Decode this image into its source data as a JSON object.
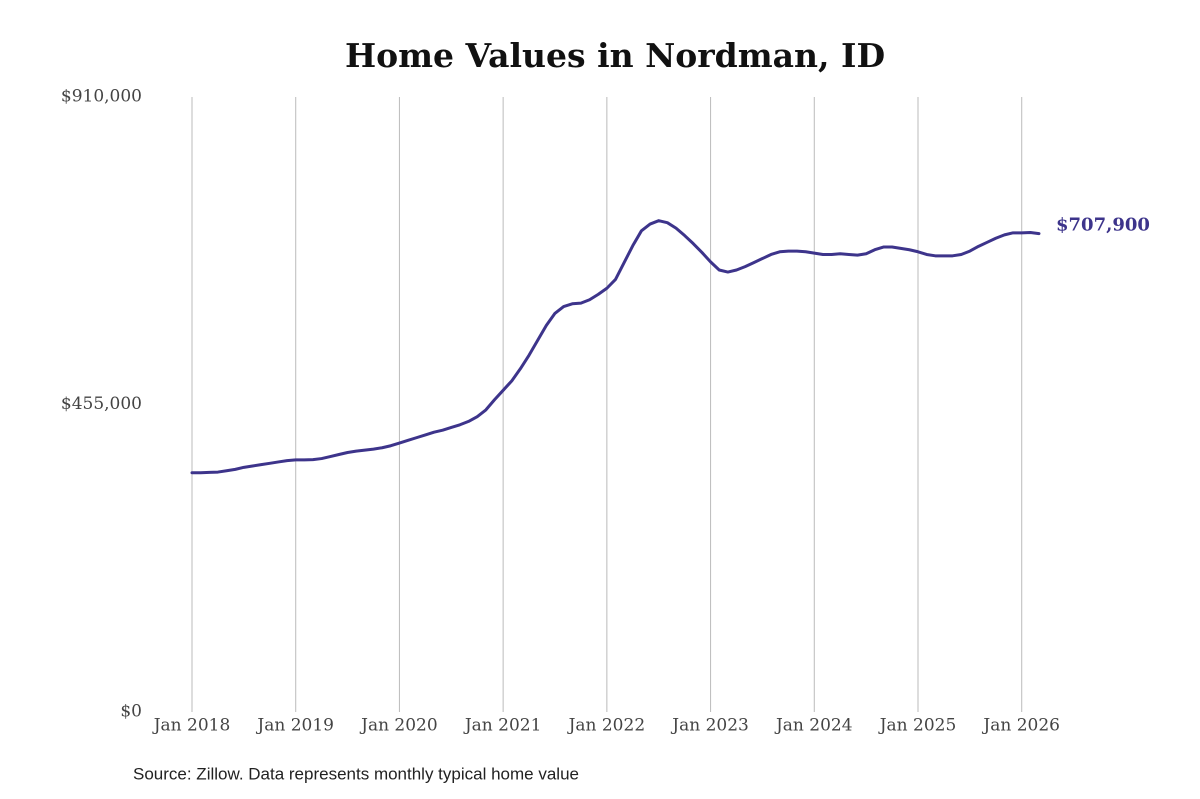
{
  "chart_data": {
    "type": "line",
    "title": "Home Values in Nordman, ID",
    "source": "Source: Zillow. Data represents monthly typical home value",
    "x": [
      "2018-01",
      "2018-02",
      "2018-03",
      "2018-04",
      "2018-05",
      "2018-06",
      "2018-07",
      "2018-08",
      "2018-09",
      "2018-10",
      "2018-11",
      "2018-12",
      "2019-01",
      "2019-02",
      "2019-03",
      "2019-04",
      "2019-05",
      "2019-06",
      "2019-07",
      "2019-08",
      "2019-09",
      "2019-10",
      "2019-11",
      "2019-12",
      "2020-01",
      "2020-02",
      "2020-03",
      "2020-04",
      "2020-05",
      "2020-06",
      "2020-07",
      "2020-08",
      "2020-09",
      "2020-10",
      "2020-11",
      "2020-12",
      "2021-01",
      "2021-02",
      "2021-03",
      "2021-04",
      "2021-05",
      "2021-06",
      "2021-07",
      "2021-08",
      "2021-09",
      "2021-10",
      "2021-11",
      "2021-12",
      "2022-01",
      "2022-02",
      "2022-03",
      "2022-04",
      "2022-05",
      "2022-06",
      "2022-07",
      "2022-08",
      "2022-09",
      "2022-10",
      "2022-11",
      "2022-12",
      "2023-01",
      "2023-02",
      "2023-03",
      "2023-04",
      "2023-05",
      "2023-06",
      "2023-07",
      "2023-08",
      "2023-09",
      "2023-10",
      "2023-11",
      "2023-12",
      "2024-01",
      "2024-02",
      "2024-03",
      "2024-04",
      "2024-05",
      "2024-06",
      "2024-07",
      "2024-08",
      "2024-09",
      "2024-10",
      "2024-11",
      "2024-12",
      "2025-01",
      "2025-02",
      "2025-03",
      "2025-04",
      "2025-05",
      "2025-06",
      "2025-07",
      "2025-08",
      "2025-09",
      "2025-10",
      "2025-11",
      "2025-12",
      "2026-01",
      "2026-02",
      "2026-03"
    ],
    "series": [
      {
        "name": "Typical home value",
        "color": "#3d348b",
        "values": [
          354000,
          354000,
          354500,
          355000,
          357000,
          359000,
          362000,
          364000,
          366000,
          368000,
          370000,
          372000,
          373000,
          373000,
          373500,
          375000,
          378000,
          381000,
          384000,
          386000,
          387500,
          389000,
          391000,
          394000,
          398000,
          402000,
          406000,
          410000,
          414000,
          417000,
          421000,
          425000,
          430000,
          437000,
          447000,
          462000,
          476000,
          490000,
          508000,
          528000,
          550000,
          572000,
          590000,
          600000,
          604000,
          605000,
          610000,
          618000,
          627000,
          640000,
          665000,
          690000,
          712000,
          722000,
          727000,
          724000,
          716000,
          705000,
          693000,
          680000,
          666000,
          654000,
          651000,
          654000,
          659000,
          665000,
          671000,
          677000,
          681000,
          682000,
          682000,
          681000,
          679000,
          677000,
          677000,
          678000,
          677000,
          676000,
          678000,
          684000,
          688000,
          688000,
          686000,
          684000,
          681000,
          677000,
          675000,
          675000,
          675000,
          677000,
          682000,
          689000,
          695000,
          701000,
          706000,
          709000,
          709000,
          709500,
          707900
        ],
        "value_labels": [
          null,
          null,
          null,
          null,
          null,
          null,
          null,
          null,
          null,
          null,
          null,
          null,
          null,
          null,
          null,
          null,
          null,
          null,
          null,
          null,
          null,
          null,
          null,
          null,
          null,
          null,
          null,
          null,
          null,
          null,
          null,
          null,
          null,
          null,
          null,
          null,
          null,
          null,
          null,
          null,
          null,
          null,
          null,
          null,
          null,
          null,
          null,
          null,
          null,
          null,
          null,
          null,
          null,
          null,
          null,
          null,
          null,
          null,
          null,
          null,
          null,
          null,
          null,
          null,
          null,
          null,
          null,
          null,
          null,
          null,
          null,
          null,
          null,
          null,
          null,
          null,
          null,
          null,
          null,
          null,
          null,
          null,
          null,
          null,
          null,
          null,
          null,
          null,
          null,
          null,
          null,
          null,
          null,
          null,
          null,
          null,
          null,
          null,
          "$707,900"
        ]
      }
    ],
    "xlim": [
      "2018-01",
      "2026-03"
    ],
    "xticks": [
      {
        "value": "2018-01",
        "label": "Jan 2018"
      },
      {
        "value": "2019-01",
        "label": "Jan 2019"
      },
      {
        "value": "2020-01",
        "label": "Jan 2020"
      },
      {
        "value": "2021-01",
        "label": "Jan 2021"
      },
      {
        "value": "2022-01",
        "label": "Jan 2022"
      },
      {
        "value": "2023-01",
        "label": "Jan 2023"
      },
      {
        "value": "2024-01",
        "label": "Jan 2024"
      },
      {
        "value": "2025-01",
        "label": "Jan 2025"
      },
      {
        "value": "2026-01",
        "label": "Jan 2026"
      }
    ],
    "ylim": [
      0,
      910000
    ],
    "yticks": [
      {
        "value": 0,
        "label": "$0"
      },
      {
        "value": 455000,
        "label": "$455,000"
      },
      {
        "value": 910000,
        "label": "$910,000"
      }
    ],
    "grid": "x"
  }
}
